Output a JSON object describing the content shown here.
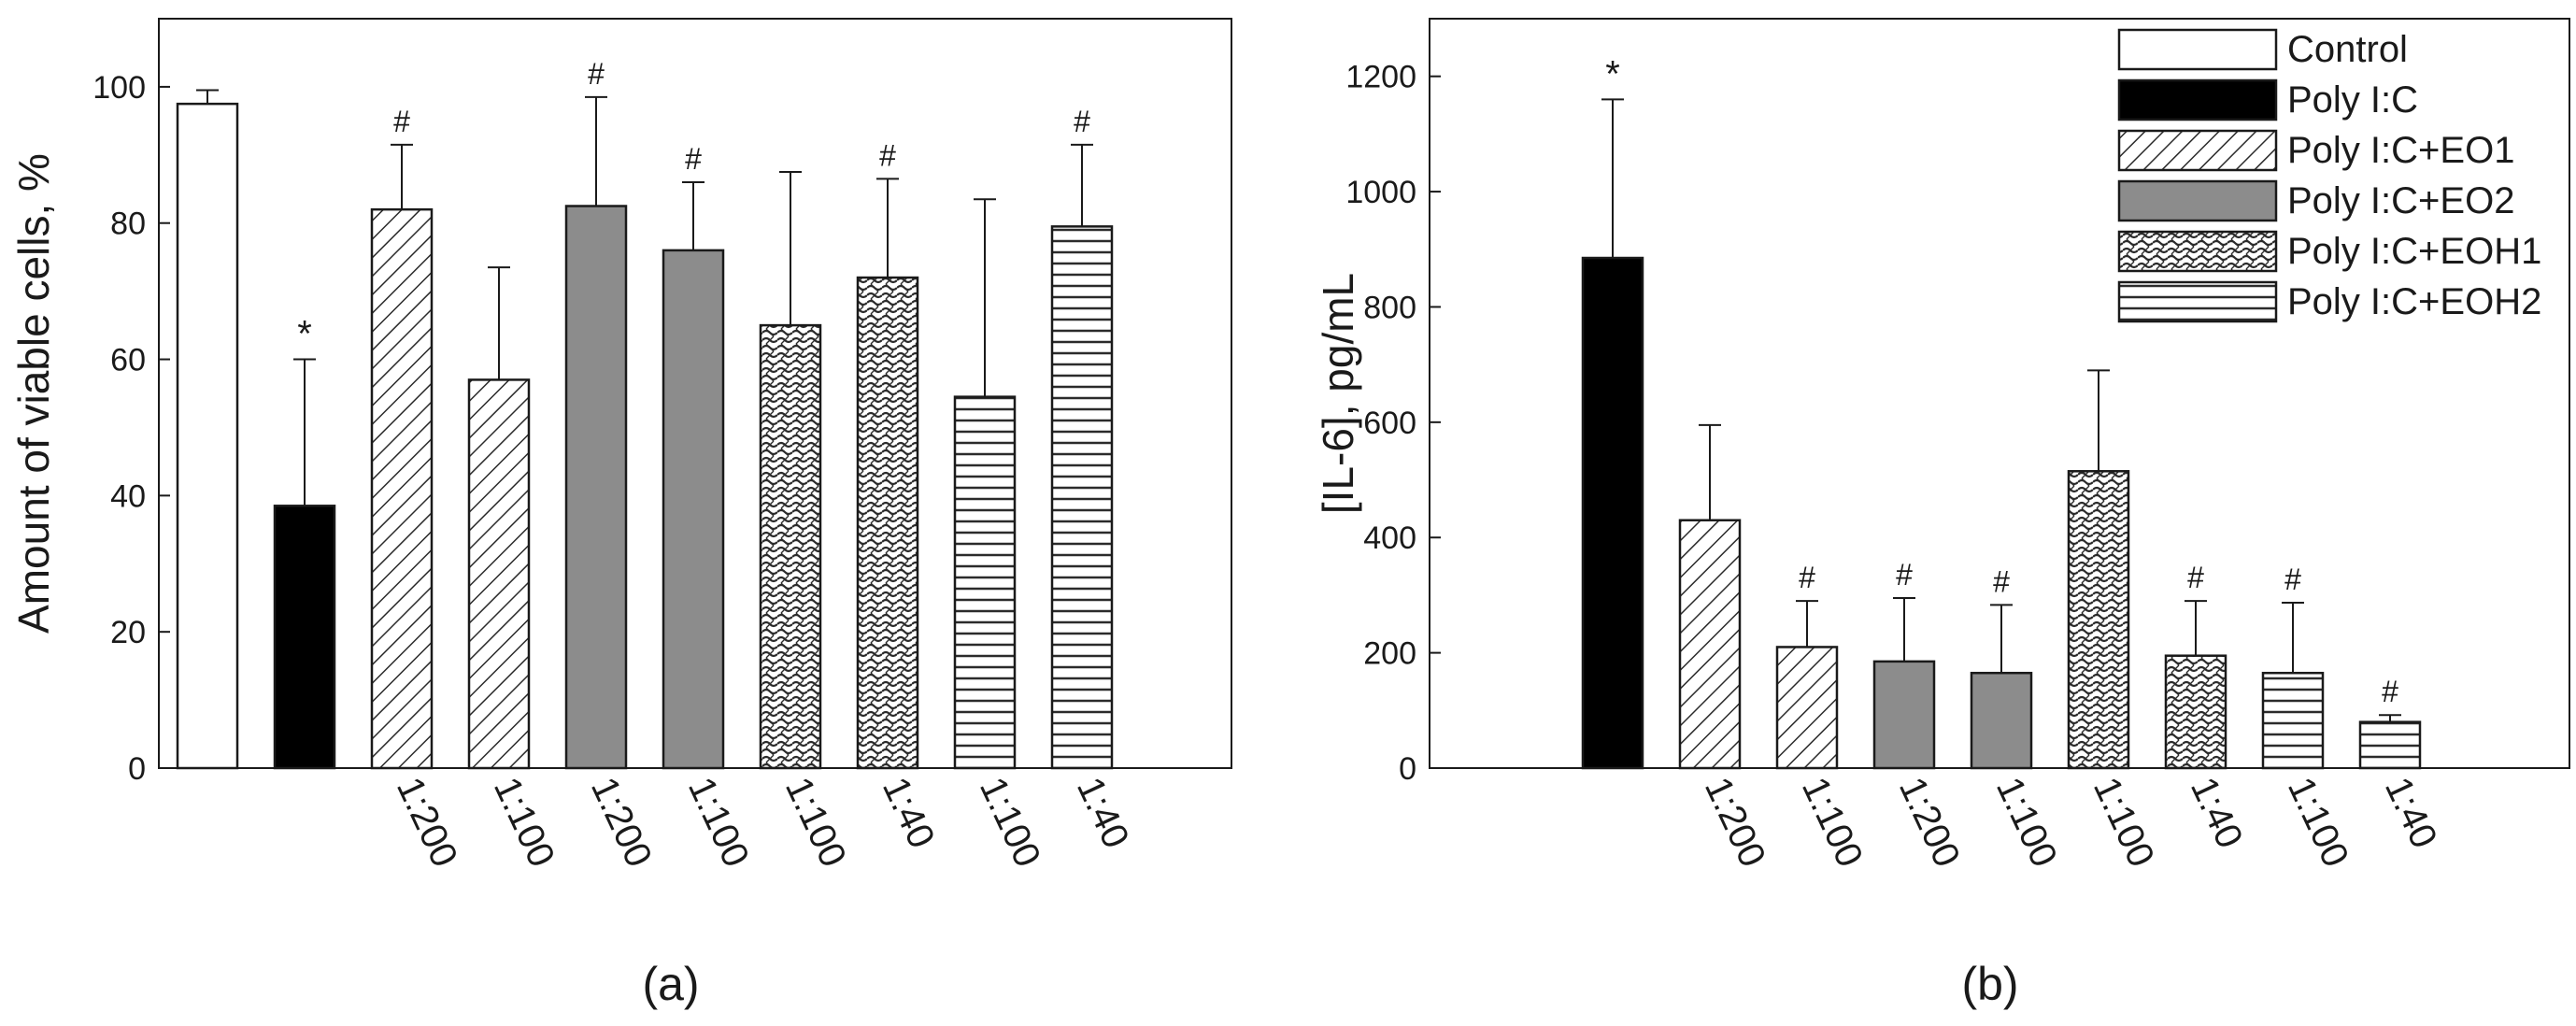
{
  "chart_data": [
    {
      "type": "bar",
      "panel_label": "(a)",
      "ylabel": "Amount of viable cells, %",
      "xlabel": "",
      "ylim": [
        0,
        110
      ],
      "yticks": [
        0,
        20,
        40,
        60,
        80,
        100
      ],
      "grid": false,
      "legend": "none",
      "bars": [
        {
          "group": "Control",
          "tick": "",
          "value": 97.5,
          "error": 2,
          "mark": ""
        },
        {
          "group": "Poly I:C",
          "tick": "",
          "value": 38.5,
          "error": 21.5,
          "mark": "*"
        },
        {
          "group": "Poly I:C+EO1",
          "tick": "1:200",
          "value": 82,
          "error": 9.5,
          "mark": "#"
        },
        {
          "group": "Poly I:C+EO1",
          "tick": "1:100",
          "value": 57,
          "error": 16.5,
          "mark": ""
        },
        {
          "group": "Poly I:C+EO2",
          "tick": "1:200",
          "value": 82.5,
          "error": 16,
          "mark": "#"
        },
        {
          "group": "Poly I:C+EO2",
          "tick": "1:100",
          "value": 76,
          "error": 10,
          "mark": "#"
        },
        {
          "group": "Poly I:C+EOH1",
          "tick": "1:100",
          "value": 65,
          "error": 22.5,
          "mark": ""
        },
        {
          "group": "Poly I:C+EOH1",
          "tick": "1:40",
          "value": 72,
          "error": 14.5,
          "mark": "#"
        },
        {
          "group": "Poly I:C+EOH2",
          "tick": "1:100",
          "value": 54.5,
          "error": 29,
          "mark": ""
        },
        {
          "group": "Poly I:C+EOH2",
          "tick": "1:40",
          "value": 79.5,
          "error": 12,
          "mark": "#"
        }
      ]
    },
    {
      "type": "bar",
      "panel_label": "(b)",
      "ylabel": "[IL-6], pg/mL",
      "xlabel": "",
      "ylim": [
        0,
        1300
      ],
      "yticks": [
        0,
        200,
        400,
        600,
        800,
        1000,
        1200
      ],
      "ytick_labels": [
        "0",
        "200",
        "400",
        "600",
        "800",
        "1000",
        "1200"
      ],
      "grid": false,
      "legend": "top-right",
      "legend_entries": [
        "Control",
        "Poly I:C",
        "Poly I:C+EO1",
        "Poly I:C+EO2",
        "Poly I:C+EOH1",
        "Poly I:C+EOH2"
      ],
      "bars": [
        {
          "group": "Control",
          "tick": "",
          "value": 0,
          "error": 0,
          "mark": ""
        },
        {
          "group": "Poly I:C",
          "tick": "",
          "value": 885,
          "error": 275,
          "mark": "*"
        },
        {
          "group": "Poly I:C+EO1",
          "tick": "1:200",
          "value": 430,
          "error": 165,
          "mark": ""
        },
        {
          "group": "Poly I:C+EO1",
          "tick": "1:100",
          "value": 210,
          "error": 80,
          "mark": "#"
        },
        {
          "group": "Poly I:C+EO2",
          "tick": "1:200",
          "value": 185,
          "error": 110,
          "mark": "#"
        },
        {
          "group": "Poly I:C+EO2",
          "tick": "1:100",
          "value": 165,
          "error": 118,
          "mark": "#"
        },
        {
          "group": "Poly I:C+EOH1",
          "tick": "1:100",
          "value": 515,
          "error": 175,
          "mark": ""
        },
        {
          "group": "Poly I:C+EOH1",
          "tick": "1:40",
          "value": 195,
          "error": 95,
          "mark": "#"
        },
        {
          "group": "Poly I:C+EOH2",
          "tick": "1:100",
          "value": 165,
          "error": 122,
          "mark": "#"
        },
        {
          "group": "Poly I:C+EOH2",
          "tick": "1:40",
          "value": 80,
          "error": 12,
          "mark": "#"
        }
      ]
    }
  ],
  "colors": {
    "black": "#000000",
    "white": "#ffffff",
    "eo2_gray": "#8c8c8c",
    "axis": "#1a1a1a",
    "hatch": "#2b2b2b"
  }
}
